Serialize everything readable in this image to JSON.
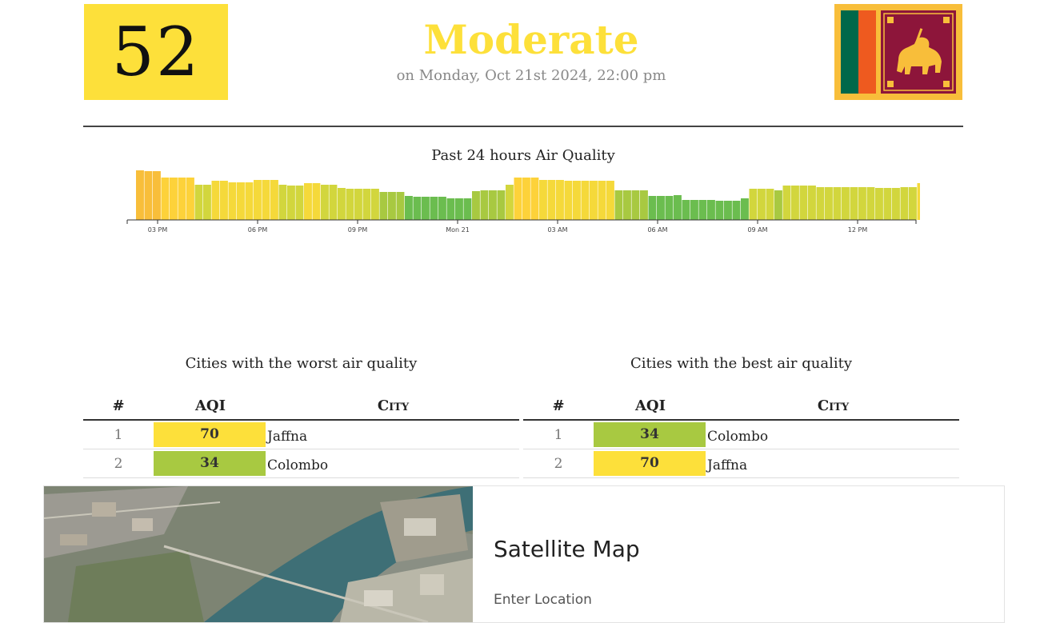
{
  "header": {
    "aqi_value": "52",
    "status_label": "Moderate",
    "timestamp": "on Monday, Oct 21st 2024, 22:00 pm",
    "colors": {
      "moderate": "#fde03a",
      "good": "#a8c941",
      "green": "#6bbd4f",
      "orange": "#f8be3a"
    }
  },
  "chart_data": {
    "type": "bar",
    "title": "Past 24 hours Air Quality",
    "xlabel": "",
    "ylabel": "",
    "x_tick_labels": [
      "03 PM",
      "06 PM",
      "09 PM",
      "Mon 21",
      "03 AM",
      "06 AM",
      "09 AM",
      "12 PM"
    ],
    "values": [
      62,
      61,
      61,
      53,
      53,
      53,
      53,
      44,
      44,
      49,
      49,
      47,
      47,
      47,
      50,
      50,
      50,
      44,
      43,
      43,
      46,
      46,
      44,
      44,
      40,
      39,
      39,
      39,
      39,
      35,
      35,
      35,
      30,
      29,
      29,
      29,
      29,
      27,
      27,
      27,
      36,
      37,
      37,
      37,
      44,
      53,
      53,
      53,
      50,
      50,
      50,
      49,
      49,
      49,
      49,
      49,
      49,
      37,
      37,
      37,
      37,
      30,
      30,
      30,
      31,
      25,
      25,
      25,
      25,
      24,
      24,
      24,
      27,
      39,
      39,
      39,
      37,
      43,
      43,
      43,
      43,
      41,
      41,
      41,
      41,
      41,
      41,
      41,
      40,
      40,
      40,
      41,
      41,
      46
    ],
    "grid": false,
    "legend": "none"
  },
  "worst_table": {
    "title": "Cities with the worst air quality",
    "headers": [
      "#",
      "AQI",
      "City"
    ],
    "rows": [
      {
        "rank": "1",
        "aqi": "70",
        "city": "Jaffna",
        "color": "#fde03a"
      },
      {
        "rank": "2",
        "aqi": "34",
        "city": "Colombo",
        "color": "#a8c941"
      }
    ]
  },
  "best_table": {
    "title": "Cities with the best air quality",
    "headers": [
      "#",
      "AQI",
      "City"
    ],
    "rows": [
      {
        "rank": "1",
        "aqi": "34",
        "city": "Colombo",
        "color": "#a8c941"
      },
      {
        "rank": "2",
        "aqi": "70",
        "city": "Jaffna",
        "color": "#fde03a"
      }
    ]
  },
  "ad": {
    "title": "Satellite Map",
    "input_placeholder": "Enter Location",
    "icons": [
      "adchoices-icon",
      "close-icon"
    ]
  }
}
